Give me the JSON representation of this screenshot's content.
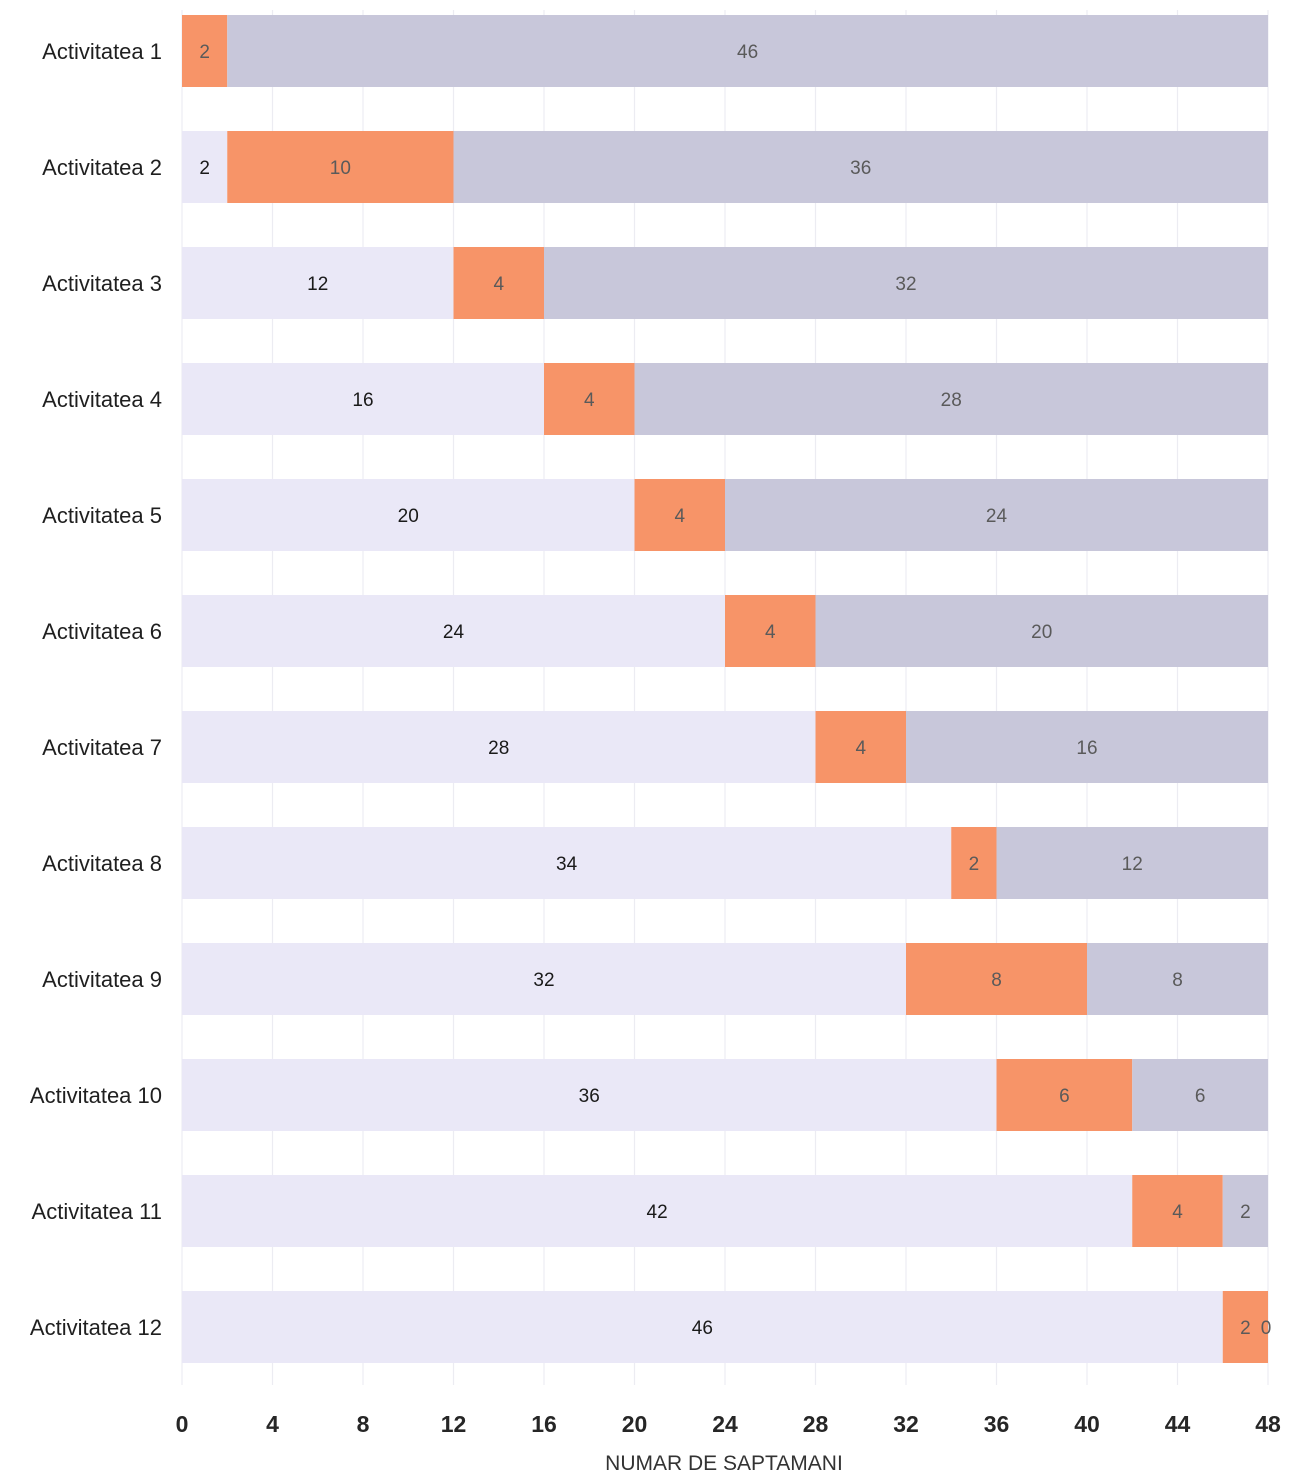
{
  "chart_data": {
    "type": "bar",
    "orientation": "horizontal",
    "stacked": true,
    "title": "",
    "xlabel": "NUMAR DE SAPTAMANI",
    "ylabel": "",
    "xlim": [
      0,
      48
    ],
    "xticks": [
      "0",
      "4",
      "8",
      "12",
      "16",
      "20",
      "24",
      "28",
      "32",
      "36",
      "40",
      "44",
      "48"
    ],
    "grid": "vertical",
    "legend": "none",
    "categories": [
      "Activitatea 1",
      "Activitatea 2",
      "Activitatea 3",
      "Activitatea 4",
      "Activitatea 5",
      "Activitatea 6",
      "Activitatea 7",
      "Activitatea 8",
      "Activitatea 9",
      "Activitatea 10",
      "Activitatea 11",
      "Activitatea 12"
    ],
    "series": [
      {
        "values": [
          0,
          2,
          12,
          16,
          20,
          24,
          28,
          34,
          32,
          36,
          42,
          46
        ],
        "labels": [
          "",
          "2",
          "12",
          "16",
          "20",
          "24",
          "28",
          "34",
          "32",
          "36",
          "42",
          "46"
        ],
        "color": "#eae8f7",
        "label_color": "#1a1a1a"
      },
      {
        "values": [
          2,
          10,
          4,
          4,
          4,
          4,
          4,
          2,
          8,
          6,
          4,
          2
        ],
        "labels": [
          "2",
          "10",
          "4",
          "4",
          "4",
          "4",
          "4",
          "2",
          "8",
          "6",
          "4",
          "2"
        ],
        "color": "#f79468",
        "label_color": "#5a5a5a"
      },
      {
        "values": [
          46,
          36,
          32,
          28,
          24,
          20,
          16,
          12,
          8,
          6,
          2,
          0
        ],
        "labels": [
          "46",
          "36",
          "32",
          "28",
          "24",
          "20",
          "16",
          "12",
          "8",
          "6",
          "2",
          "0"
        ],
        "color": "#c8c7da",
        "label_color": "#5a5a5a"
      }
    ]
  }
}
